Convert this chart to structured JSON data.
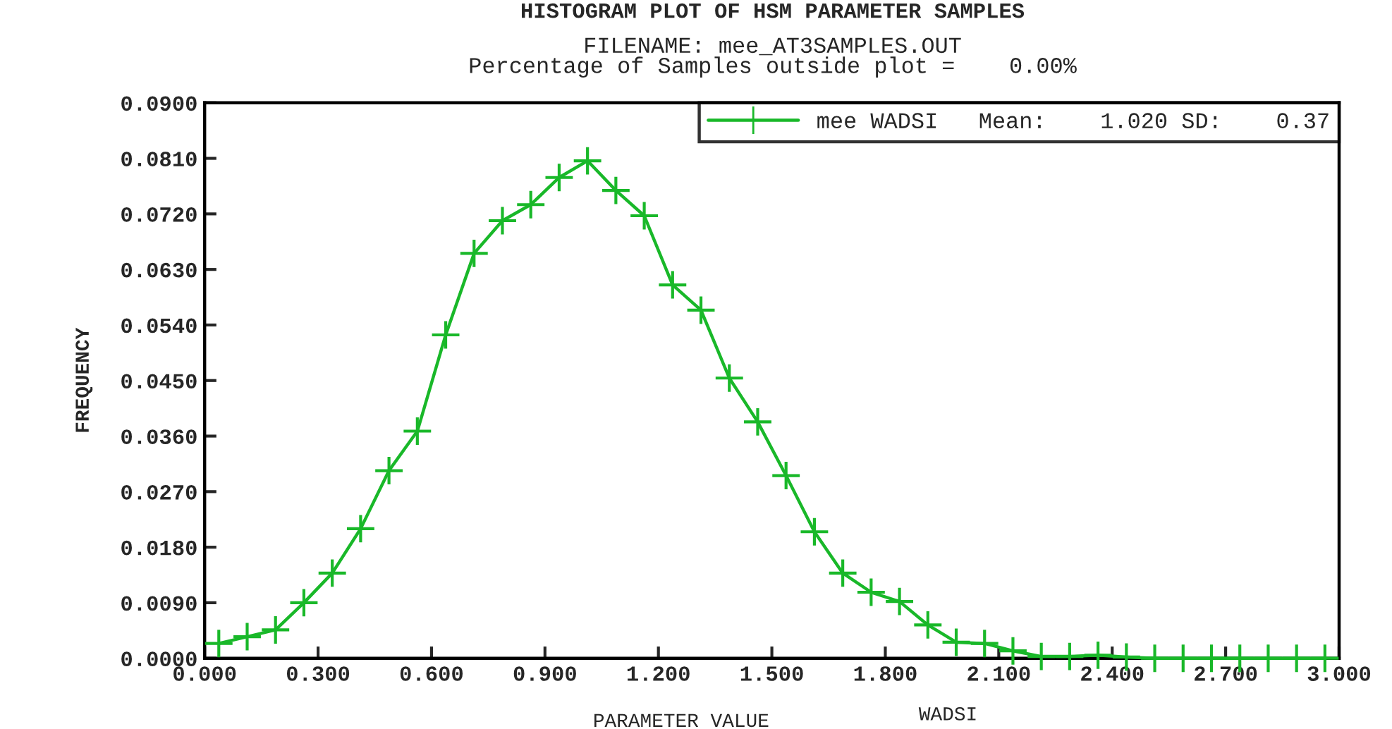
{
  "chart_data": {
    "type": "line",
    "title": "HISTOGRAM PLOT OF HSM PARAMETER SAMPLES",
    "subtitle": "FILENAME: mee_AT3SAMPLES.OUT\nPercentage of Samples outside plot =    0.00%",
    "xlabel": "PARAMETER VALUE",
    "ylabel": "FREQUENCY",
    "annotations": [
      "WADSI"
    ],
    "x": [
      0.0375,
      0.1125,
      0.1875,
      0.2625,
      0.3375,
      0.4125,
      0.4875,
      0.5625,
      0.6375,
      0.7125,
      0.7875,
      0.8625,
      0.9375,
      1.0125,
      1.0875,
      1.1625,
      1.2375,
      1.3125,
      1.3875,
      1.4625,
      1.5375,
      1.6125,
      1.6875,
      1.7625,
      1.8375,
      1.9125,
      1.9875,
      2.0625,
      2.1375,
      2.2125,
      2.2875,
      2.3625,
      2.4375,
      2.5125,
      2.5875,
      2.6625,
      2.7375,
      2.8125,
      2.8875,
      2.9625
    ],
    "series": [
      {
        "name": "mee WADSI   Mean:    1.020 SD:    0.37",
        "color": "#19b829",
        "values": [
          0.0024,
          0.0035,
          0.0046,
          0.009,
          0.0138,
          0.021,
          0.0304,
          0.0368,
          0.0524,
          0.0656,
          0.0709,
          0.0735,
          0.0779,
          0.0806,
          0.0758,
          0.0717,
          0.0605,
          0.0564,
          0.0454,
          0.0383,
          0.0296,
          0.0205,
          0.0138,
          0.0107,
          0.0092,
          0.0054,
          0.0026,
          0.0024,
          0.0012,
          0.0003,
          0.0003,
          0.0005,
          0.0002,
          0,
          0,
          0,
          0,
          0,
          0,
          0
        ]
      }
    ],
    "xlim": [
      0,
      3
    ],
    "ylim": [
      0,
      0.09
    ],
    "xticks": [
      {
        "value": 0,
        "label": "0.000"
      },
      {
        "value": 0.3,
        "label": "0.300"
      },
      {
        "value": 0.6,
        "label": "0.600"
      },
      {
        "value": 0.9,
        "label": "0.900"
      },
      {
        "value": 1.2,
        "label": "1.200"
      },
      {
        "value": 1.5,
        "label": "1.500"
      },
      {
        "value": 1.8,
        "label": "1.800"
      },
      {
        "value": 2.1,
        "label": "2.100"
      },
      {
        "value": 2.4,
        "label": "2.400"
      },
      {
        "value": 2.7,
        "label": "2.700"
      },
      {
        "value": 3,
        "label": "3.000"
      }
    ],
    "yticks": [
      {
        "value": 0,
        "label": "0.0000"
      },
      {
        "value": 0.009,
        "label": "0.0090"
      },
      {
        "value": 0.018,
        "label": "0.0180"
      },
      {
        "value": 0.027,
        "label": "0.0270"
      },
      {
        "value": 0.036,
        "label": "0.0360"
      },
      {
        "value": 0.045,
        "label": "0.0450"
      },
      {
        "value": 0.054,
        "label": "0.0540"
      },
      {
        "value": 0.063,
        "label": "0.0630"
      },
      {
        "value": 0.072,
        "label": "0.0720"
      },
      {
        "value": 0.081,
        "label": "0.0810"
      },
      {
        "value": 0.09,
        "label": "0.0900"
      }
    ],
    "grid": false,
    "legend": "top right",
    "marker": "cross",
    "line_style": "solid"
  }
}
